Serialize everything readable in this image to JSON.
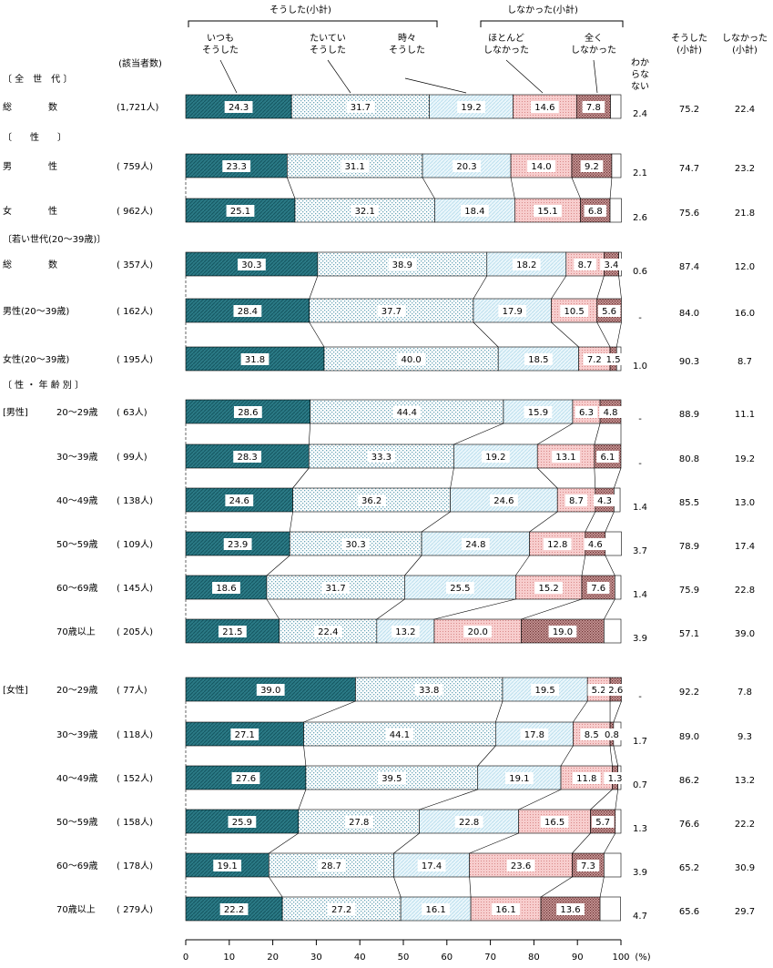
{
  "chart_data": {
    "type": "bar",
    "subtype": "stacked-horizontal-100",
    "unit": "(%)",
    "respondents_header": "(該当者数)",
    "group_headers": {
      "did": "そうした(小計)",
      "did_not": "しなかった(小計)"
    },
    "series": [
      {
        "name": "いつも そうした",
        "label_lines": [
          "いつも",
          "そうした"
        ],
        "color": "#2b7a86"
      },
      {
        "name": "たいてい そうした",
        "label_lines": [
          "たいてい",
          "そうした"
        ],
        "color": "#c7dfe7"
      },
      {
        "name": "時々 そうした",
        "label_lines": [
          "時々",
          "そうした"
        ],
        "color": "#e3f2f8"
      },
      {
        "name": "ほとんど しなかった",
        "label_lines": [
          "ほとんど",
          "しなかった"
        ],
        "color": "#f5c4c4"
      },
      {
        "name": "全く しなかった",
        "label_lines": [
          "全く",
          "しなかった"
        ],
        "color": "#b98080"
      },
      {
        "name": "わからない",
        "label_lines": [
          "わか",
          "らな",
          "ない"
        ],
        "color": "#ffffff"
      }
    ],
    "summary_columns": [
      {
        "name": "そうした(小計)",
        "label_lines": [
          "そうした",
          "(小計)"
        ]
      },
      {
        "name": "しなかった(小計)",
        "label_lines": [
          "しなかった",
          "(小計)"
        ]
      }
    ],
    "section_headers": [
      {
        "text": "〔 全　世　代 〕",
        "before_row": 0
      },
      {
        "text": "〔　　性　　〕",
        "before_row": 1
      },
      {
        "text": "〔若い世代(20～39歳)〕",
        "before_row": 3
      },
      {
        "text": "〔 性 ・ 年 齢 別 〕",
        "before_row": 6
      }
    ],
    "rows": [
      {
        "category": "総　　　　数",
        "group": "",
        "n": "(1,721人)",
        "values": [
          24.3,
          31.7,
          19.2,
          14.6,
          7.8,
          2.4
        ],
        "labels": [
          "24.3",
          "31.7",
          "19.2",
          "14.6",
          "7.8",
          "2.4"
        ],
        "did": "75.2",
        "did_not": "22.4"
      },
      {
        "category": "男　　　　性",
        "group": "",
        "n": "( 759人)",
        "values": [
          23.3,
          31.1,
          20.3,
          14.0,
          9.2,
          2.1
        ],
        "labels": [
          "23.3",
          "31.1",
          "20.3",
          "14.0",
          "9.2",
          "2.1"
        ],
        "did": "74.7",
        "did_not": "23.2"
      },
      {
        "category": "女　　　　性",
        "group": "",
        "n": "( 962人)",
        "values": [
          25.1,
          32.1,
          18.4,
          15.1,
          6.8,
          2.6
        ],
        "labels": [
          "25.1",
          "32.1",
          "18.4",
          "15.1",
          "6.8",
          "2.6"
        ],
        "did": "75.6",
        "did_not": "21.8"
      },
      {
        "category": "総　　　　数",
        "group": "",
        "n": "( 357人)",
        "values": [
          30.3,
          38.9,
          18.2,
          8.7,
          3.4,
          0.6
        ],
        "labels": [
          "30.3",
          "38.9",
          "18.2",
          "8.7",
          "3.4",
          "0.6"
        ],
        "did": "87.4",
        "did_not": "12.0"
      },
      {
        "category": "男性(20～39歳)",
        "group": "",
        "n": "( 162人)",
        "values": [
          28.4,
          37.7,
          17.9,
          10.5,
          5.6,
          0
        ],
        "labels": [
          "28.4",
          "37.7",
          "17.9",
          "10.5",
          "5.6",
          "-"
        ],
        "did": "84.0",
        "did_not": "16.0"
      },
      {
        "category": "女性(20～39歳)",
        "group": "",
        "n": "( 195人)",
        "values": [
          31.8,
          40.0,
          18.5,
          7.2,
          1.5,
          1.0
        ],
        "labels": [
          "31.8",
          "40.0",
          "18.5",
          "7.2",
          "1.5",
          "1.0"
        ],
        "did": "90.3",
        "did_not": "8.7"
      },
      {
        "category": "20～29歳",
        "group": "[男性]",
        "n": "( 63人)",
        "values": [
          28.6,
          44.4,
          15.9,
          6.3,
          4.8,
          0
        ],
        "labels": [
          "28.6",
          "44.4",
          "15.9",
          "6.3",
          "4.8",
          "-"
        ],
        "did": "88.9",
        "did_not": "11.1"
      },
      {
        "category": "30～39歳",
        "group": "",
        "n": "( 99人)",
        "values": [
          28.3,
          33.3,
          19.2,
          13.1,
          6.1,
          0
        ],
        "labels": [
          "28.3",
          "33.3",
          "19.2",
          "13.1",
          "6.1",
          "-"
        ],
        "did": "80.8",
        "did_not": "19.2"
      },
      {
        "category": "40～49歳",
        "group": "",
        "n": "( 138人)",
        "values": [
          24.6,
          36.2,
          24.6,
          8.7,
          4.3,
          1.4
        ],
        "labels": [
          "24.6",
          "36.2",
          "24.6",
          "8.7",
          "4.3",
          "1.4"
        ],
        "did": "85.5",
        "did_not": "13.0"
      },
      {
        "category": "50～59歳",
        "group": "",
        "n": "( 109人)",
        "values": [
          23.9,
          30.3,
          24.8,
          12.8,
          4.6,
          3.7
        ],
        "labels": [
          "23.9",
          "30.3",
          "24.8",
          "12.8",
          "4.6",
          "3.7"
        ],
        "did": "78.9",
        "did_not": "17.4"
      },
      {
        "category": "60～69歳",
        "group": "",
        "n": "( 145人)",
        "values": [
          18.6,
          31.7,
          25.5,
          15.2,
          7.6,
          1.4
        ],
        "labels": [
          "18.6",
          "31.7",
          "25.5",
          "15.2",
          "7.6",
          "1.4"
        ],
        "did": "75.9",
        "did_not": "22.8"
      },
      {
        "category": "70歳以上",
        "group": "",
        "n": "( 205人)",
        "values": [
          21.5,
          22.4,
          13.2,
          20.0,
          19.0,
          3.9
        ],
        "labels": [
          "21.5",
          "22.4",
          "13.2",
          "20.0",
          "19.0",
          "3.9"
        ],
        "did": "57.1",
        "did_not": "39.0"
      },
      {
        "category": "20～29歳",
        "group": "[女性]",
        "n": "( 77人)",
        "values": [
          39.0,
          33.8,
          19.5,
          5.2,
          2.6,
          0
        ],
        "labels": [
          "39.0",
          "33.8",
          "19.5",
          "5.2",
          "2.6",
          "-"
        ],
        "did": "92.2",
        "did_not": "7.8"
      },
      {
        "category": "30～39歳",
        "group": "",
        "n": "( 118人)",
        "values": [
          27.1,
          44.1,
          17.8,
          8.5,
          0.8,
          1.7
        ],
        "labels": [
          "27.1",
          "44.1",
          "17.8",
          "8.5",
          "0.8",
          "1.7"
        ],
        "did": "89.0",
        "did_not": "9.3"
      },
      {
        "category": "40～49歳",
        "group": "",
        "n": "( 152人)",
        "values": [
          27.6,
          39.5,
          19.1,
          11.8,
          1.3,
          0.7
        ],
        "labels": [
          "27.6",
          "39.5",
          "19.1",
          "11.8",
          "1.3",
          "0.7"
        ],
        "did": "86.2",
        "did_not": "13.2"
      },
      {
        "category": "50～59歳",
        "group": "",
        "n": "( 158人)",
        "values": [
          25.9,
          27.8,
          22.8,
          16.5,
          5.7,
          1.3
        ],
        "labels": [
          "25.9",
          "27.8",
          "22.8",
          "16.5",
          "5.7",
          "1.3"
        ],
        "did": "76.6",
        "did_not": "22.2"
      },
      {
        "category": "60～69歳",
        "group": "",
        "n": "( 178人)",
        "values": [
          19.1,
          28.7,
          17.4,
          23.6,
          7.3,
          3.9
        ],
        "labels": [
          "19.1",
          "28.7",
          "17.4",
          "23.6",
          "7.3",
          "3.9"
        ],
        "did": "65.2",
        "did_not": "30.9"
      },
      {
        "category": "70歳以上",
        "group": "",
        "n": "( 279人)",
        "values": [
          22.2,
          27.2,
          16.1,
          16.1,
          13.6,
          4.7
        ],
        "labels": [
          "22.2",
          "27.2",
          "16.1",
          "16.1",
          "13.6",
          "4.7"
        ],
        "did": "65.6",
        "did_not": "29.7"
      }
    ],
    "x_ticks": [
      "0",
      "10",
      "20",
      "30",
      "40",
      "50",
      "60",
      "70",
      "80",
      "90",
      "100"
    ],
    "xlim": [
      0,
      100
    ]
  }
}
